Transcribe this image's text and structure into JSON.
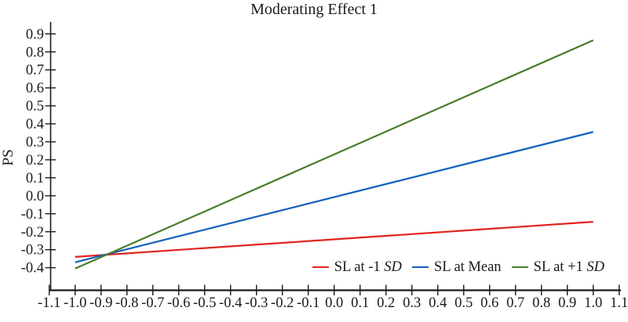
{
  "title": "Moderating Effect 1",
  "chart_data": {
    "type": "line",
    "title": "Moderating Effect 1",
    "xlabel": "",
    "ylabel": "PS",
    "xlim": [
      -1.1,
      1.1
    ],
    "ylim": [
      -0.53,
      0.96
    ],
    "x_ticks": [
      -1.1,
      -1.0,
      -0.9,
      -0.8,
      -0.7,
      -0.6,
      -0.5,
      -0.4,
      -0.3,
      -0.2,
      -0.1,
      0.0,
      0.1,
      0.2,
      0.3,
      0.4,
      0.5,
      0.6,
      0.7,
      0.8,
      0.9,
      1.0,
      1.1
    ],
    "y_ticks": [
      0.9,
      0.8,
      0.7,
      0.6,
      0.5,
      0.4,
      0.3,
      0.2,
      0.1,
      0.0,
      -0.1,
      -0.2,
      -0.3,
      -0.4
    ],
    "grid": false,
    "legend_position": "inside-bottom-right",
    "axis_color": "#1a1a1a",
    "series": [
      {
        "name": "SL at -1 SD",
        "color": "#e0231e",
        "x": [
          -1.0,
          1.0
        ],
        "y": [
          -0.34,
          -0.145
        ]
      },
      {
        "name": "SL at Mean",
        "color": "#1261bb",
        "x": [
          -1.0,
          1.0
        ],
        "y": [
          -0.37,
          0.355
        ]
      },
      {
        "name": "SL at +1 SD",
        "color": "#4a7c28",
        "x": [
          -1.0,
          1.0
        ],
        "y": [
          -0.405,
          0.865
        ]
      }
    ]
  },
  "legend": {
    "items": [
      {
        "prefix": "SL at -1 ",
        "italic": "SD"
      },
      {
        "prefix": "SL at Mean",
        "italic": ""
      },
      {
        "prefix": "SL at +1 ",
        "italic": "SD"
      }
    ]
  }
}
